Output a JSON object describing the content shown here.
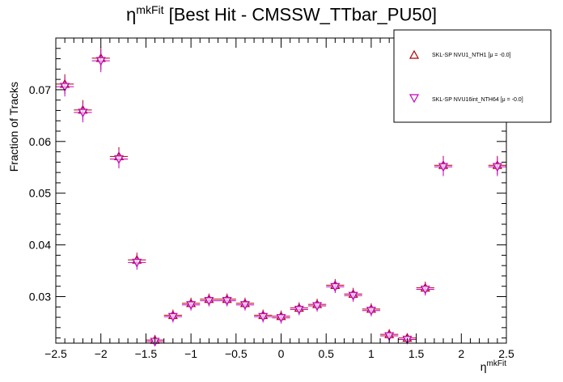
{
  "title": {
    "symbol": "η",
    "sup": "mkFit",
    "rest": " [Best Hit - CMSSW_TTbar_PU50]"
  },
  "xlabel": {
    "symbol": "η",
    "sup": "mkFit"
  },
  "ylabel": "Fraction of Tracks",
  "legend": [
    {
      "label": "SKL-SP NVU1_NTH1 [μ = -0.0]",
      "marker": "triangle-up-icon",
      "color": "#b00000"
    },
    {
      "label": "SKL-SP NVU16int_NTH64 [μ = -0.0]",
      "marker": "triangle-down-icon",
      "color": "#c000c0"
    }
  ],
  "chart_data": {
    "type": "scatter",
    "xlim": [
      -2.5,
      2.5
    ],
    "ylim": [
      0.021,
      0.08
    ],
    "xticks": [
      -2.5,
      -2,
      -1.5,
      -1,
      -0.5,
      0,
      0.5,
      1,
      1.5,
      2,
      2.5
    ],
    "xtick_labels": [
      "−2.5",
      "−2",
      "−1.5",
      "−1",
      "−0.5",
      "0",
      "0.5",
      "1",
      "1.5",
      "2",
      "2.5"
    ],
    "yticks": [
      0.03,
      0.04,
      0.05,
      0.06,
      0.07
    ],
    "ytick_labels": [
      "0.03",
      "0.04",
      "0.05",
      "0.06",
      "0.07"
    ],
    "x_bin_halfwidth": 0.1,
    "series": [
      {
        "name": "SKL-SP NVU1_NTH1 [μ = -0.0]",
        "marker": "triangle-up",
        "color": "#b00000",
        "x": [
          -2.4,
          -2.2,
          -2.0,
          -1.8,
          -1.6,
          -1.4,
          -1.2,
          -1.0,
          -0.8,
          -0.6,
          -0.4,
          -0.2,
          0.0,
          0.2,
          0.4,
          0.6,
          0.8,
          1.0,
          1.2,
          1.4,
          1.6,
          1.8,
          2.4
        ],
        "y": [
          0.0711,
          0.0661,
          0.0761,
          0.0571,
          0.0371,
          0.0216,
          0.0264,
          0.0287,
          0.0295,
          0.0295,
          0.0287,
          0.0264,
          0.0262,
          0.0278,
          0.0285,
          0.0322,
          0.0305,
          0.0276,
          0.0227,
          0.022,
          0.0317,
          0.0554,
          0.0554
        ],
        "yerr": [
          0.0019,
          0.0019,
          0.0022,
          0.0018,
          0.0014,
          0.001,
          0.0011,
          0.0011,
          0.0011,
          0.0011,
          0.0011,
          0.0011,
          0.0011,
          0.0011,
          0.0011,
          0.0012,
          0.0012,
          0.0011,
          0.001,
          0.0009,
          0.0012,
          0.0018,
          0.0018
        ]
      },
      {
        "name": "SKL-SP NVU16int_NTH64 [μ = -0.0]",
        "marker": "triangle-down",
        "color": "#c000c0",
        "x": [
          -2.4,
          -2.2,
          -2.0,
          -1.8,
          -1.6,
          -1.4,
          -1.2,
          -1.0,
          -0.8,
          -0.6,
          -0.4,
          -0.2,
          0.0,
          0.2,
          0.4,
          0.6,
          0.8,
          1.0,
          1.2,
          1.4,
          1.6,
          1.8,
          2.4
        ],
        "y": [
          0.0706,
          0.0656,
          0.0756,
          0.0566,
          0.0366,
          0.0213,
          0.0261,
          0.0284,
          0.0292,
          0.0292,
          0.0284,
          0.0261,
          0.0259,
          0.0275,
          0.0282,
          0.0319,
          0.0302,
          0.0273,
          0.0224,
          0.0217,
          0.0314,
          0.0551,
          0.0551
        ],
        "yerr": [
          0.0019,
          0.0019,
          0.0022,
          0.0018,
          0.0014,
          0.001,
          0.0011,
          0.0011,
          0.0011,
          0.0011,
          0.0011,
          0.0011,
          0.0011,
          0.0011,
          0.0011,
          0.0012,
          0.0012,
          0.0011,
          0.001,
          0.0009,
          0.0012,
          0.0018,
          0.0018
        ]
      }
    ]
  }
}
